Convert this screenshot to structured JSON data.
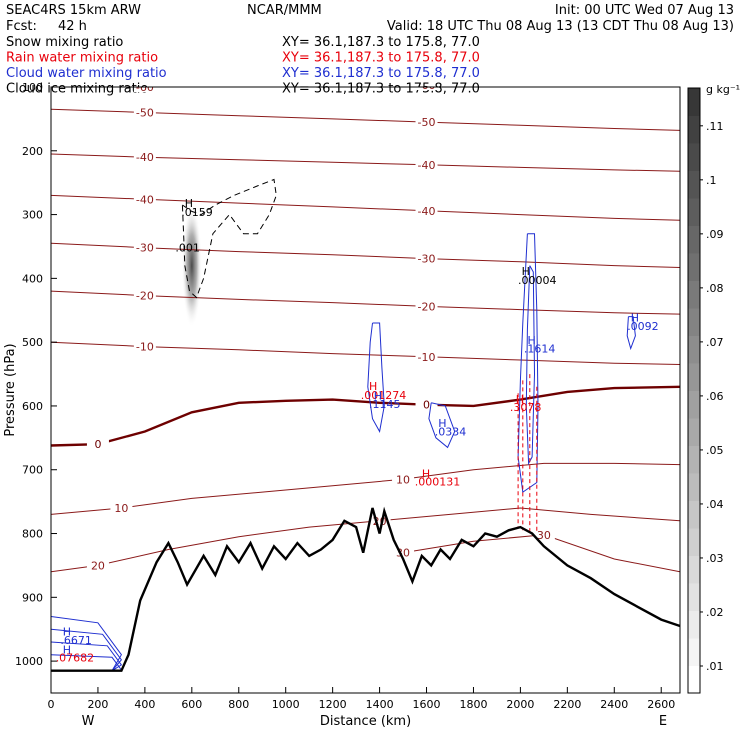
{
  "chart_data": {
    "type": "contour-cross-section",
    "header": {
      "model": "SEAC4RS 15km ARW",
      "center": "NCAR/MMM",
      "init": "Init: 00 UTC Wed 07 Aug 13",
      "fcst_label": "Fcst:",
      "fcst_value": "42 h",
      "valid": "Valid: 18 UTC Thu 08 Aug 13 (13 CDT Thu 08 Aug 13)"
    },
    "fields": [
      {
        "name": "Snow mixing ratio",
        "xy": "XY=  36.1,187.3 to 175.8, 77.0",
        "color": "#000000"
      },
      {
        "name": "Rain water mixing ratio",
        "xy": "XY=  36.1,187.3 to 175.8, 77.0",
        "color": "#e8000b"
      },
      {
        "name": "Cloud water mixing ratio",
        "xy": "XY=  36.1,187.3 to 175.8, 77.0",
        "color": "#1f2fd0"
      },
      {
        "name": "Cloud ice mixing ratio",
        "xy": "XY=  36.1,187.3 to 175.8, 77.0",
        "color": "#000000"
      }
    ],
    "xlabel": "Distance (km)",
    "ylabel": "Pressure (hPa)",
    "xlim": [
      0,
      2680
    ],
    "ylim": [
      1050,
      100
    ],
    "xticks": [
      0,
      200,
      400,
      600,
      800,
      1000,
      1200,
      1400,
      1600,
      1800,
      2000,
      2200,
      2400,
      2600
    ],
    "yticks": [
      100,
      200,
      300,
      400,
      500,
      600,
      700,
      800,
      900,
      1000
    ],
    "x_end_labels": {
      "left": "W",
      "right": "E"
    },
    "colorbar": {
      "unit": "g kg⁻¹",
      "ticks": [
        ".01",
        ".02",
        ".03",
        ".04",
        ".05",
        ".06",
        ".07",
        ".08",
        ".09",
        ".1",
        ".11"
      ],
      "min": 0.005,
      "max": 0.117
    },
    "temperature_isotherms": {
      "color": "#8b1a1a",
      "zero_color": "#6e0000",
      "lines": [
        {
          "label": "-60",
          "pts": [
            [
              0,
              100
            ],
            [
              400,
              100
            ],
            [
              800,
              99
            ],
            [
              1200,
              98
            ],
            [
              1600,
              97
            ],
            [
              2000,
              96
            ],
            [
              2400,
              95
            ],
            [
              2680,
              94
            ]
          ]
        },
        {
          "label": "-50",
          "pts": [
            [
              0,
              135
            ],
            [
              400,
              140
            ],
            [
              800,
              145
            ],
            [
              1200,
              150
            ],
            [
              1600,
              155
            ],
            [
              2000,
              160
            ],
            [
              2400,
              165
            ],
            [
              2680,
              168
            ]
          ]
        },
        {
          "label": "-40",
          "pts": [
            [
              0,
              205
            ],
            [
              400,
              210
            ],
            [
              800,
              214
            ],
            [
              1200,
              218
            ],
            [
              1600,
              222
            ],
            [
              2000,
              226
            ],
            [
              2400,
              230
            ],
            [
              2680,
              232
            ]
          ]
        },
        {
          "label": "-40",
          "pts": [
            [
              0,
              270
            ],
            [
              400,
              276
            ],
            [
              800,
              282
            ],
            [
              1200,
              288
            ],
            [
              1600,
              294
            ],
            [
              2000,
              300
            ],
            [
              2400,
              306
            ],
            [
              2680,
              309
            ]
          ]
        },
        {
          "label": "-30",
          "pts": [
            [
              0,
              345
            ],
            [
              400,
              352
            ],
            [
              800,
              358
            ],
            [
              1200,
              363
            ],
            [
              1600,
              369
            ],
            [
              2000,
              374
            ],
            [
              2400,
              380
            ],
            [
              2680,
              383
            ]
          ]
        },
        {
          "label": "-20",
          "pts": [
            [
              0,
              420
            ],
            [
              400,
              427
            ],
            [
              800,
              433
            ],
            [
              1200,
              438
            ],
            [
              1600,
              444
            ],
            [
              2000,
              449
            ],
            [
              2400,
              454
            ],
            [
              2680,
              456
            ]
          ]
        },
        {
          "label": "-10",
          "pts": [
            [
              0,
              500
            ],
            [
              400,
              507
            ],
            [
              800,
              512
            ],
            [
              1200,
              518
            ],
            [
              1600,
              523
            ],
            [
              2000,
              528
            ],
            [
              2400,
              533
            ],
            [
              2680,
              535
            ]
          ]
        },
        {
          "label": "0",
          "zero": true,
          "pts": [
            [
              0,
              662
            ],
            [
              200,
              660
            ],
            [
              400,
              640
            ],
            [
              600,
              610
            ],
            [
              800,
              595
            ],
            [
              1000,
              592
            ],
            [
              1200,
              590
            ],
            [
              1400,
              595
            ],
            [
              1600,
              598
            ],
            [
              1800,
              600
            ],
            [
              2000,
              590
            ],
            [
              2200,
              578
            ],
            [
              2400,
              572
            ],
            [
              2680,
              570
            ]
          ]
        },
        {
          "label": "10",
          "pts": [
            [
              0,
              770
            ],
            [
              300,
              760
            ],
            [
              600,
              745
            ],
            [
              900,
              735
            ],
            [
              1200,
              725
            ],
            [
              1500,
              715
            ],
            [
              1800,
              700
            ],
            [
              2100,
              690
            ],
            [
              2400,
              690
            ],
            [
              2680,
              692
            ]
          ]
        },
        {
          "label": "20",
          "pts": [
            [
              0,
              860
            ],
            [
              200,
              850
            ],
            [
              500,
              825
            ],
            [
              800,
              805
            ],
            [
              1100,
              790
            ],
            [
              1400,
              780
            ],
            [
              1700,
              770
            ],
            [
              2000,
              760
            ],
            [
              2300,
              770
            ],
            [
              2680,
              780
            ]
          ]
        },
        {
          "label": "30",
          "pts": [
            [
              1500,
              830
            ],
            [
              1800,
              812
            ],
            [
              2100,
              802
            ],
            [
              2400,
              840
            ],
            [
              2680,
              860
            ]
          ]
        }
      ]
    },
    "terrain": {
      "pts": [
        [
          0,
          1015
        ],
        [
          300,
          1015
        ],
        [
          330,
          990
        ],
        [
          380,
          905
        ],
        [
          450,
          845
        ],
        [
          500,
          815
        ],
        [
          540,
          845
        ],
        [
          580,
          880
        ],
        [
          650,
          835
        ],
        [
          700,
          865
        ],
        [
          750,
          820
        ],
        [
          800,
          845
        ],
        [
          850,
          815
        ],
        [
          900,
          855
        ],
        [
          950,
          820
        ],
        [
          1000,
          840
        ],
        [
          1050,
          815
        ],
        [
          1100,
          835
        ],
        [
          1150,
          825
        ],
        [
          1200,
          810
        ],
        [
          1250,
          780
        ],
        [
          1300,
          790
        ],
        [
          1330,
          830
        ],
        [
          1370,
          760
        ],
        [
          1400,
          800
        ],
        [
          1420,
          765
        ],
        [
          1460,
          810
        ],
        [
          1500,
          840
        ],
        [
          1540,
          875
        ],
        [
          1580,
          835
        ],
        [
          1620,
          850
        ],
        [
          1660,
          825
        ],
        [
          1700,
          840
        ],
        [
          1750,
          810
        ],
        [
          1800,
          820
        ],
        [
          1850,
          800
        ],
        [
          1900,
          805
        ],
        [
          1950,
          795
        ],
        [
          2000,
          790
        ],
        [
          2050,
          800
        ],
        [
          2100,
          820
        ],
        [
          2200,
          850
        ],
        [
          2300,
          870
        ],
        [
          2400,
          895
        ],
        [
          2500,
          915
        ],
        [
          2600,
          935
        ],
        [
          2680,
          945
        ]
      ]
    },
    "annotations": [
      {
        "text": "H",
        "x": 570,
        "y": 288,
        "color": "#000000"
      },
      {
        "text": ".0159",
        "x": 555,
        "y": 302,
        "color": "#000000"
      },
      {
        "text": ".001",
        "x": 530,
        "y": 358,
        "color": "#000000"
      },
      {
        "text": "H",
        "x": 2005,
        "y": 395,
        "color": "#000000"
      },
      {
        "text": ".00004",
        "x": 1990,
        "y": 409,
        "color": "#000000"
      },
      {
        "text": "H",
        "x": 1355,
        "y": 575,
        "color": "#e8000b"
      },
      {
        "text": ".001274",
        "x": 1320,
        "y": 589,
        "color": "#e8000b"
      },
      {
        "text": "H",
        "x": 1980,
        "y": 595,
        "color": "#e8000b"
      },
      {
        "text": ".3078",
        "x": 1955,
        "y": 608,
        "color": "#e8000b"
      },
      {
        "text": "H",
        "x": 1580,
        "y": 712,
        "color": "#e8000b"
      },
      {
        "text": ".000131",
        "x": 1550,
        "y": 725,
        "color": "#e8000b"
      },
      {
        "text": "H",
        "x": 2030,
        "y": 503,
        "color": "#1f2fd0"
      },
      {
        "text": ".1614",
        "x": 2015,
        "y": 516,
        "color": "#1f2fd0"
      },
      {
        "text": "H",
        "x": 1375,
        "y": 590,
        "color": "#1f2fd0"
      },
      {
        "text": ".1145",
        "x": 1355,
        "y": 603,
        "color": "#1f2fd0"
      },
      {
        "text": "H",
        "x": 1650,
        "y": 633,
        "color": "#1f2fd0"
      },
      {
        "text": ".0334",
        "x": 1635,
        "y": 646,
        "color": "#1f2fd0"
      },
      {
        "text": "H",
        "x": 2470,
        "y": 468,
        "color": "#1f2fd0"
      },
      {
        "text": ".0092",
        "x": 2455,
        "y": 481,
        "color": "#1f2fd0"
      },
      {
        "text": "H",
        "x": 50,
        "y": 960,
        "color": "#1f2fd0"
      },
      {
        "text": ".6671",
        "x": 40,
        "y": 973,
        "color": "#1f2fd0"
      },
      {
        "text": "H",
        "x": 50,
        "y": 988,
        "color": "#1f2fd0"
      },
      {
        "text": ".07682",
        "x": 20,
        "y": 1001,
        "color": "#e8000b"
      }
    ],
    "snow_shading": {
      "center": [
        600,
        380
      ],
      "peak": 0.11
    },
    "grid": false
  }
}
